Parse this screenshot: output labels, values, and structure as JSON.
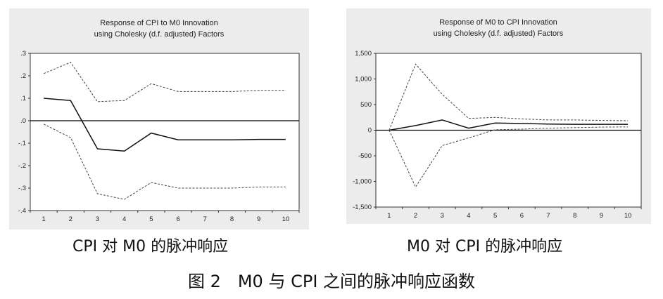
{
  "chart_data": [
    {
      "type": "line",
      "title": "Response of CPI to M0 Innovation",
      "subtitle": "using Cholesky (d.f. adjusted) Factors",
      "x": [
        1,
        2,
        3,
        4,
        5,
        6,
        7,
        8,
        9,
        10
      ],
      "ylim": [
        -0.4,
        0.3
      ],
      "y_ticks": [
        0.3,
        0.2,
        0.1,
        0.0,
        -0.1,
        -0.2,
        -0.3,
        -0.4
      ],
      "y_tick_labels": [
        ".3",
        ".2",
        ".1",
        ".0",
        "-.1",
        "-.2",
        "-.3",
        "-.4"
      ],
      "series": [
        {
          "style": "solid",
          "values": [
            0.1,
            0.09,
            -0.125,
            -0.135,
            -0.055,
            -0.085,
            -0.085,
            -0.085,
            -0.083,
            -0.083
          ]
        },
        {
          "style": "dashed",
          "values": [
            0.21,
            0.26,
            0.085,
            0.09,
            0.165,
            0.13,
            0.13,
            0.13,
            0.135,
            0.135
          ]
        },
        {
          "style": "dashed",
          "values": [
            -0.015,
            -0.075,
            -0.325,
            -0.35,
            -0.275,
            -0.3,
            -0.3,
            -0.3,
            -0.295,
            -0.295
          ]
        }
      ],
      "zero_line": true,
      "grid": false
    },
    {
      "type": "line",
      "title": "Response of M0 to CPI Innovation",
      "subtitle": "using Cholesky (d.f. adjusted) Factors",
      "x": [
        1,
        2,
        3,
        4,
        5,
        6,
        7,
        8,
        9,
        10
      ],
      "ylim": [
        -1500,
        1500
      ],
      "y_ticks": [
        1500,
        1000,
        500,
        0,
        -500,
        -1000,
        -1500
      ],
      "y_tick_labels": [
        "1,500",
        "1,000",
        "500",
        "0",
        "-500",
        "-1,000",
        "-1,500"
      ],
      "series": [
        {
          "style": "solid",
          "values": [
            0,
            90,
            200,
            40,
            140,
            130,
            120,
            115,
            115,
            115
          ]
        },
        {
          "style": "dashed",
          "values": [
            0,
            1290,
            700,
            230,
            250,
            220,
            200,
            200,
            190,
            185
          ]
        },
        {
          "style": "dashed",
          "values": [
            0,
            -1110,
            -300,
            -150,
            10,
            20,
            40,
            50,
            60,
            65
          ]
        }
      ],
      "zero_line": true,
      "grid": false
    }
  ],
  "captions": {
    "left": "CPI 对 M0 的脉冲响应",
    "right": "M0 对 CPI 的脉冲响应",
    "figure": "图 2　M0 与 CPI 之间的脉冲响应函数"
  }
}
